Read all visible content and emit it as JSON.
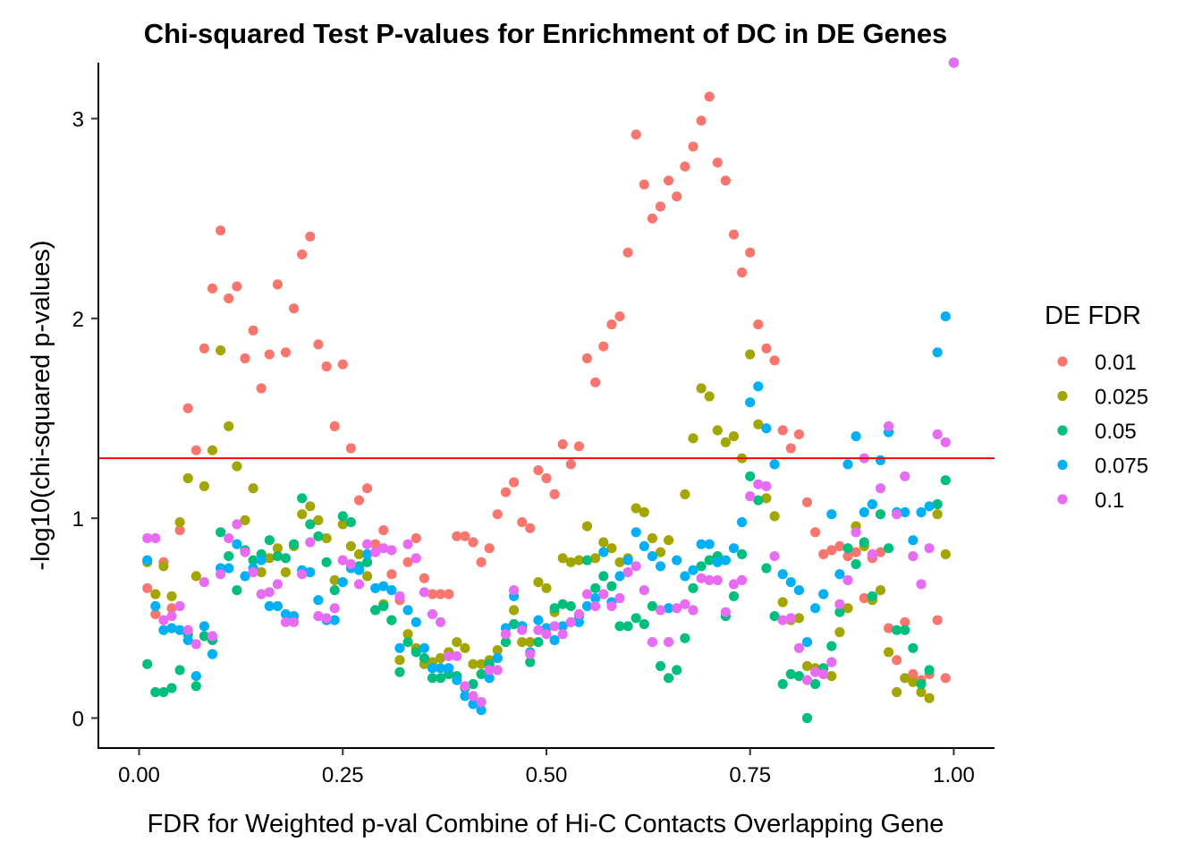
{
  "chart_data": {
    "type": "scatter",
    "title": "Chi-squared Test P-values for Enrichment of DC in DE Genes",
    "xlabel": "FDR for Weighted p-val Combine of Hi-C Contacts Overlapping Gene",
    "ylabel": "-log10(chi-squared p-values)",
    "xlim": [
      -0.05,
      1.05
    ],
    "ylim": [
      -0.15,
      3.28
    ],
    "x_ticks": [
      0,
      0.25,
      0.5,
      0.75,
      1
    ],
    "x_tick_labels": [
      "0.00",
      "0.25",
      "0.50",
      "0.75",
      "1.00"
    ],
    "y_ticks": [
      0,
      1,
      2,
      3
    ],
    "y_tick_labels": [
      "0",
      "1",
      "2",
      "3"
    ],
    "threshold_line": {
      "y": 1.3,
      "color": "#FF0000"
    },
    "legend": {
      "title": "DE FDR",
      "position": "right"
    },
    "grid": false,
    "series": [
      {
        "name": "0.01",
        "color": "#F8766D",
        "x": [
          0.01,
          0.02,
          0.03,
          0.04,
          0.05,
          0.06,
          0.07,
          0.08,
          0.09,
          0.1,
          0.11,
          0.12,
          0.13,
          0.14,
          0.15,
          0.16,
          0.17,
          0.18,
          0.19,
          0.2,
          0.21,
          0.22,
          0.23,
          0.24,
          0.25,
          0.26,
          0.27,
          0.28,
          0.29,
          0.3,
          0.31,
          0.32,
          0.33,
          0.34,
          0.35,
          0.36,
          0.37,
          0.38,
          0.39,
          0.4,
          0.41,
          0.42,
          0.43,
          0.44,
          0.45,
          0.46,
          0.47,
          0.48,
          0.49,
          0.5,
          0.51,
          0.52,
          0.53,
          0.54,
          0.55,
          0.56,
          0.57,
          0.58,
          0.59,
          0.6,
          0.61,
          0.62,
          0.63,
          0.64,
          0.65,
          0.66,
          0.67,
          0.68,
          0.69,
          0.7,
          0.71,
          0.72,
          0.73,
          0.74,
          0.75,
          0.76,
          0.77,
          0.78,
          0.79,
          0.8,
          0.81,
          0.82,
          0.83,
          0.84,
          0.85,
          0.86,
          0.87,
          0.88,
          0.89,
          0.9,
          0.91,
          0.92,
          0.93,
          0.94,
          0.95,
          0.96,
          0.97,
          0.98,
          0.99,
          1.0
        ],
        "y": [
          0.65,
          0.52,
          0.78,
          0.55,
          0.94,
          1.55,
          1.34,
          1.85,
          2.15,
          2.44,
          2.1,
          2.16,
          1.8,
          1.94,
          1.65,
          1.82,
          2.17,
          1.83,
          2.05,
          2.32,
          2.41,
          1.87,
          1.76,
          1.46,
          1.77,
          1.35,
          1.09,
          1.15,
          0.87,
          0.94,
          0.72,
          0.59,
          0.78,
          0.9,
          0.7,
          0.62,
          0.62,
          0.62,
          0.91,
          0.91,
          0.88,
          0.78,
          0.85,
          1.02,
          1.13,
          1.18,
          0.98,
          0.95,
          1.24,
          1.2,
          1.12,
          1.37,
          1.27,
          1.36,
          1.8,
          1.68,
          1.86,
          1.97,
          2.01,
          2.33,
          2.92,
          2.67,
          2.5,
          2.56,
          2.69,
          2.61,
          2.76,
          2.86,
          2.99,
          3.11,
          2.78,
          2.69,
          2.42,
          2.23,
          2.33,
          1.97,
          1.85,
          1.79,
          1.44,
          1.35,
          1.42,
          1.08,
          0.93,
          0.82,
          0.84,
          0.86,
          0.81,
          0.83,
          0.6,
          0.8,
          0.83,
          0.45,
          0.29,
          0.48,
          0.22,
          0.19,
          0.22,
          0.49,
          0.2,
          3.28
        ]
      },
      {
        "name": "0.025",
        "color": "#A3A500",
        "x": [
          0.01,
          0.02,
          0.03,
          0.04,
          0.05,
          0.06,
          0.07,
          0.08,
          0.09,
          0.1,
          0.11,
          0.12,
          0.13,
          0.14,
          0.15,
          0.16,
          0.17,
          0.18,
          0.19,
          0.2,
          0.21,
          0.22,
          0.23,
          0.24,
          0.25,
          0.26,
          0.27,
          0.28,
          0.29,
          0.3,
          0.31,
          0.32,
          0.33,
          0.34,
          0.35,
          0.36,
          0.37,
          0.38,
          0.39,
          0.4,
          0.41,
          0.42,
          0.43,
          0.44,
          0.45,
          0.46,
          0.47,
          0.48,
          0.49,
          0.5,
          0.51,
          0.52,
          0.53,
          0.54,
          0.55,
          0.56,
          0.57,
          0.58,
          0.59,
          0.6,
          0.61,
          0.62,
          0.63,
          0.64,
          0.65,
          0.66,
          0.67,
          0.68,
          0.69,
          0.7,
          0.71,
          0.72,
          0.73,
          0.74,
          0.75,
          0.76,
          0.77,
          0.78,
          0.79,
          0.8,
          0.81,
          0.82,
          0.83,
          0.84,
          0.85,
          0.86,
          0.87,
          0.88,
          0.89,
          0.9,
          0.91,
          0.92,
          0.93,
          0.94,
          0.95,
          0.96,
          0.97,
          0.98,
          0.99,
          1.0
        ],
        "y": [
          0.78,
          0.62,
          0.76,
          0.61,
          0.98,
          1.2,
          0.71,
          1.16,
          1.34,
          1.84,
          1.46,
          1.26,
          0.99,
          1.15,
          0.73,
          0.8,
          0.85,
          0.73,
          0.86,
          1.02,
          1.06,
          0.99,
          0.9,
          0.69,
          0.97,
          0.86,
          0.82,
          0.71,
          0.54,
          0.57,
          0.49,
          0.29,
          0.42,
          0.35,
          0.27,
          0.28,
          0.3,
          0.33,
          0.38,
          0.35,
          0.27,
          0.27,
          0.29,
          0.34,
          0.42,
          0.54,
          0.38,
          0.38,
          0.68,
          0.65,
          0.53,
          0.8,
          0.78,
          0.79,
          0.96,
          0.8,
          0.88,
          0.85,
          0.78,
          0.8,
          1.05,
          1.03,
          0.9,
          0.83,
          0.89,
          0.55,
          1.12,
          1.4,
          1.65,
          1.61,
          1.44,
          1.38,
          1.41,
          1.3,
          1.82,
          1.47,
          1.1,
          1.01,
          0.58,
          0.49,
          0.5,
          0.26,
          0.25,
          0.22,
          0.21,
          0.43,
          0.55,
          0.96,
          0.86,
          0.59,
          0.64,
          0.33,
          0.13,
          0.2,
          0.18,
          0.13,
          0.1,
          1.02,
          0.82,
          3.28
        ]
      },
      {
        "name": "0.05",
        "color": "#00BF7D",
        "x": [
          0.01,
          0.02,
          0.03,
          0.04,
          0.05,
          0.06,
          0.07,
          0.08,
          0.09,
          0.1,
          0.11,
          0.12,
          0.13,
          0.14,
          0.15,
          0.16,
          0.17,
          0.18,
          0.19,
          0.2,
          0.21,
          0.22,
          0.23,
          0.24,
          0.25,
          0.26,
          0.27,
          0.28,
          0.29,
          0.3,
          0.31,
          0.32,
          0.33,
          0.34,
          0.35,
          0.36,
          0.37,
          0.38,
          0.39,
          0.4,
          0.41,
          0.42,
          0.43,
          0.44,
          0.45,
          0.46,
          0.47,
          0.48,
          0.49,
          0.5,
          0.51,
          0.52,
          0.53,
          0.54,
          0.55,
          0.56,
          0.57,
          0.58,
          0.59,
          0.6,
          0.61,
          0.62,
          0.63,
          0.64,
          0.65,
          0.66,
          0.67,
          0.68,
          0.69,
          0.7,
          0.71,
          0.72,
          0.73,
          0.74,
          0.75,
          0.76,
          0.77,
          0.78,
          0.79,
          0.8,
          0.81,
          0.82,
          0.83,
          0.84,
          0.85,
          0.86,
          0.87,
          0.88,
          0.89,
          0.9,
          0.91,
          0.92,
          0.93,
          0.94,
          0.95,
          0.96,
          0.97,
          0.98,
          0.99,
          1.0
        ],
        "y": [
          0.27,
          0.13,
          0.13,
          0.15,
          0.24,
          0.42,
          0.16,
          0.41,
          0.39,
          0.93,
          0.81,
          0.64,
          0.84,
          0.79,
          0.82,
          0.89,
          0.81,
          0.8,
          0.87,
          1.1,
          0.97,
          0.91,
          0.78,
          0.64,
          1.01,
          0.98,
          0.76,
          0.78,
          0.54,
          0.56,
          0.49,
          0.23,
          0.38,
          0.33,
          0.3,
          0.2,
          0.2,
          0.22,
          0.21,
          0.15,
          0.17,
          0.22,
          0.27,
          0.3,
          0.38,
          0.47,
          0.46,
          0.28,
          0.38,
          0.45,
          0.55,
          0.57,
          0.56,
          0.51,
          0.79,
          0.65,
          0.71,
          0.66,
          0.46,
          0.46,
          0.5,
          0.47,
          0.56,
          0.26,
          0.2,
          0.24,
          0.4,
          0.65,
          0.76,
          0.79,
          0.81,
          0.51,
          0.61,
          0.82,
          1.21,
          1.09,
          0.75,
          0.51,
          0.17,
          0.22,
          0.21,
          0.0,
          0.17,
          0.25,
          0.36,
          0.53,
          0.85,
          0.77,
          0.88,
          0.61,
          1.02,
          0.85,
          0.44,
          0.44,
          0.35,
          0.17,
          0.24,
          1.07,
          1.19,
          3.28
        ]
      },
      {
        "name": "0.075",
        "color": "#00B0F6",
        "x": [
          0.01,
          0.02,
          0.03,
          0.04,
          0.05,
          0.06,
          0.07,
          0.08,
          0.09,
          0.1,
          0.11,
          0.12,
          0.13,
          0.14,
          0.15,
          0.16,
          0.17,
          0.18,
          0.19,
          0.2,
          0.21,
          0.22,
          0.23,
          0.24,
          0.25,
          0.26,
          0.27,
          0.28,
          0.29,
          0.3,
          0.31,
          0.32,
          0.33,
          0.34,
          0.35,
          0.36,
          0.37,
          0.38,
          0.39,
          0.4,
          0.41,
          0.42,
          0.43,
          0.44,
          0.45,
          0.46,
          0.47,
          0.48,
          0.49,
          0.5,
          0.51,
          0.52,
          0.53,
          0.54,
          0.55,
          0.56,
          0.57,
          0.58,
          0.59,
          0.6,
          0.61,
          0.62,
          0.63,
          0.64,
          0.65,
          0.66,
          0.67,
          0.68,
          0.69,
          0.7,
          0.71,
          0.72,
          0.73,
          0.74,
          0.75,
          0.76,
          0.77,
          0.78,
          0.79,
          0.8,
          0.81,
          0.82,
          0.83,
          0.84,
          0.85,
          0.86,
          0.87,
          0.88,
          0.89,
          0.9,
          0.91,
          0.92,
          0.93,
          0.94,
          0.95,
          0.96,
          0.97,
          0.98,
          0.99,
          1.0
        ],
        "y": [
          0.79,
          0.56,
          0.44,
          0.45,
          0.44,
          0.39,
          0.21,
          0.46,
          0.32,
          0.75,
          0.75,
          0.87,
          0.71,
          0.75,
          0.79,
          0.56,
          0.56,
          0.52,
          0.51,
          0.74,
          0.73,
          0.59,
          0.49,
          0.49,
          0.68,
          0.75,
          0.74,
          0.82,
          0.65,
          0.66,
          0.64,
          0.35,
          0.54,
          0.48,
          0.35,
          0.25,
          0.25,
          0.25,
          0.19,
          0.11,
          0.07,
          0.04,
          0.2,
          0.3,
          0.45,
          0.61,
          0.46,
          0.33,
          0.49,
          0.45,
          0.39,
          0.46,
          0.48,
          0.48,
          0.56,
          0.6,
          0.83,
          0.58,
          0.71,
          0.79,
          0.93,
          0.86,
          0.81,
          0.76,
          0.55,
          0.79,
          0.71,
          0.74,
          0.87,
          0.87,
          0.78,
          0.79,
          0.85,
          0.98,
          1.58,
          1.66,
          1.45,
          1.27,
          0.72,
          0.68,
          0.64,
          0.38,
          0.55,
          0.62,
          1.02,
          0.72,
          1.27,
          1.41,
          1.03,
          1.07,
          1.29,
          1.43,
          1.03,
          1.03,
          0.89,
          1.03,
          1.06,
          1.83,
          2.01,
          3.28
        ]
      },
      {
        "name": "0.1",
        "color": "#E76BF3",
        "x": [
          0.01,
          0.02,
          0.03,
          0.04,
          0.05,
          0.06,
          0.07,
          0.08,
          0.09,
          0.1,
          0.11,
          0.12,
          0.13,
          0.14,
          0.15,
          0.16,
          0.17,
          0.18,
          0.19,
          0.2,
          0.21,
          0.22,
          0.23,
          0.24,
          0.25,
          0.26,
          0.27,
          0.28,
          0.29,
          0.3,
          0.31,
          0.32,
          0.33,
          0.34,
          0.35,
          0.36,
          0.37,
          0.38,
          0.39,
          0.4,
          0.41,
          0.42,
          0.43,
          0.44,
          0.45,
          0.46,
          0.47,
          0.48,
          0.49,
          0.5,
          0.51,
          0.52,
          0.53,
          0.54,
          0.55,
          0.56,
          0.57,
          0.58,
          0.59,
          0.6,
          0.61,
          0.62,
          0.63,
          0.64,
          0.65,
          0.66,
          0.67,
          0.68,
          0.69,
          0.7,
          0.71,
          0.72,
          0.73,
          0.74,
          0.75,
          0.76,
          0.77,
          0.78,
          0.79,
          0.8,
          0.81,
          0.82,
          0.83,
          0.84,
          0.85,
          0.86,
          0.87,
          0.88,
          0.89,
          0.9,
          0.91,
          0.92,
          0.93,
          0.94,
          0.95,
          0.96,
          0.97,
          0.98,
          0.99,
          1.0
        ],
        "y": [
          0.9,
          0.9,
          0.49,
          0.51,
          0.56,
          0.44,
          0.37,
          0.68,
          0.41,
          0.72,
          0.9,
          0.97,
          0.83,
          0.73,
          0.62,
          0.63,
          0.67,
          0.48,
          0.48,
          0.72,
          0.88,
          0.51,
          0.5,
          0.55,
          0.79,
          0.77,
          0.67,
          0.87,
          0.83,
          0.85,
          0.84,
          0.61,
          0.87,
          0.8,
          0.63,
          0.52,
          0.48,
          0.31,
          0.31,
          0.16,
          0.11,
          0.08,
          0.24,
          0.24,
          0.42,
          0.64,
          0.44,
          0.32,
          0.44,
          0.42,
          0.46,
          0.42,
          0.48,
          0.52,
          0.62,
          0.56,
          0.62,
          0.56,
          0.6,
          0.73,
          0.76,
          0.64,
          0.38,
          0.54,
          0.38,
          0.55,
          0.57,
          0.54,
          0.7,
          0.69,
          0.69,
          0.53,
          0.67,
          0.69,
          1.11,
          1.17,
          1.16,
          0.81,
          0.49,
          0.5,
          0.35,
          0.19,
          0.23,
          0.22,
          0.28,
          0.57,
          0.69,
          0.93,
          1.3,
          0.82,
          1.15,
          1.46,
          1.02,
          1.21,
          0.81,
          0.67,
          0.85,
          1.42,
          1.38,
          3.28
        ]
      }
    ]
  }
}
